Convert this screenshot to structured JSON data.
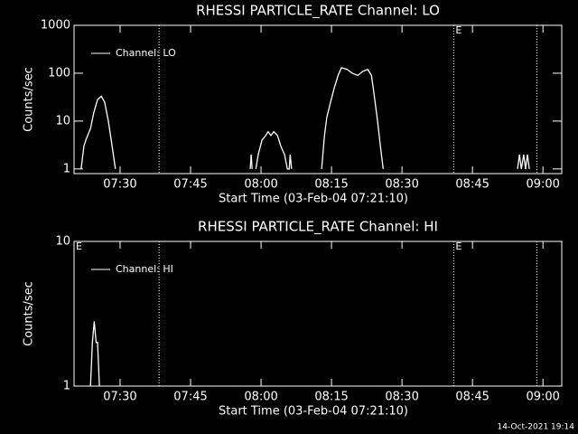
{
  "chart_data": [
    {
      "type": "line",
      "title": "RHESSI PARTICLE_RATE Channel: LO",
      "xlabel": "Start Time (03-Feb-04 07:21:10)",
      "ylabel": "Counts/sec",
      "yscale": "log",
      "legend": "top-left",
      "xlim": [
        20.2,
        124
      ],
      "ylim": [
        0.8,
        1000
      ],
      "xticks": [
        {
          "value": 30,
          "label": "07:30"
        },
        {
          "value": 45,
          "label": "07:45"
        },
        {
          "value": 60,
          "label": "08:00"
        },
        {
          "value": 75,
          "label": "08:15"
        },
        {
          "value": 90,
          "label": "08:30"
        },
        {
          "value": 105,
          "label": "08:45"
        },
        {
          "value": 120,
          "label": "09:00"
        }
      ],
      "yticks": [
        1,
        10,
        100,
        1000
      ],
      "markers": [
        38.3,
        101.0,
        118.7
      ],
      "annotations": [
        {
          "x": 101.0,
          "text": "E"
        }
      ],
      "x": [
        21.7,
        22.3,
        22.7,
        23.7,
        24.4,
        25.2,
        26.0,
        26.7,
        27.5,
        28.3,
        29.0,
        29.5,
        57.7,
        57.9,
        58.1,
        58.5,
        58.9,
        59.4,
        60.2,
        61.0,
        61.5,
        62.1,
        62.7,
        63.5,
        64.2,
        65.0,
        65.6,
        66.0,
        66.2,
        66.5,
        67.0,
        72.9,
        73.5,
        74.0,
        74.8,
        75.6,
        76.4,
        77.1,
        78.3,
        79.4,
        80.6,
        81.7,
        82.7,
        83.5,
        84.0,
        84.8,
        85.4,
        86.0,
        87.0,
        114.6,
        115.0,
        115.4,
        115.9,
        116.3,
        116.7,
        117.1
      ],
      "series": [
        {
          "name": "Channel: LO",
          "color": "#ffffff",
          "values": [
            1,
            3,
            4,
            7,
            15,
            28,
            33,
            25,
            10,
            3,
            1,
            null,
            1,
            2,
            1,
            null,
            1,
            2,
            4,
            5,
            6,
            5,
            6,
            5,
            3,
            2,
            1,
            1,
            2,
            1,
            null,
            1,
            5,
            12,
            25,
            50,
            90,
            130,
            120,
            100,
            90,
            110,
            120,
            90,
            40,
            10,
            3,
            1,
            null,
            1,
            2,
            1,
            2,
            1,
            2,
            1
          ]
        }
      ]
    },
    {
      "type": "line",
      "title": "RHESSI PARTICLE_RATE Channel: HI",
      "xlabel": "Start Time (03-Feb-04 07:21:10)",
      "ylabel": "Counts/sec",
      "yscale": "log",
      "legend": "top-left",
      "xlim": [
        20.2,
        124
      ],
      "ylim": [
        1,
        10
      ],
      "xticks": [
        {
          "value": 30,
          "label": "07:30"
        },
        {
          "value": 45,
          "label": "07:45"
        },
        {
          "value": 60,
          "label": "08:00"
        },
        {
          "value": 75,
          "label": "08:15"
        },
        {
          "value": 90,
          "label": "08:30"
        },
        {
          "value": 105,
          "label": "08:45"
        },
        {
          "value": 120,
          "label": "09:00"
        }
      ],
      "yticks": [
        1,
        10
      ],
      "markers": [
        38.3,
        101.0,
        118.7
      ],
      "annotations": [
        {
          "x": 20.2,
          "text": "E"
        },
        {
          "x": 101.0,
          "text": "E"
        }
      ],
      "x": [
        23.7,
        24.1,
        24.5,
        24.9,
        25.2,
        25.6
      ],
      "series": [
        {
          "name": "Channel: HI",
          "color": "#ffffff",
          "values": [
            1,
            2,
            2.8,
            2,
            2,
            1
          ]
        }
      ]
    }
  ],
  "footer": "14-Oct-2021 19:14"
}
